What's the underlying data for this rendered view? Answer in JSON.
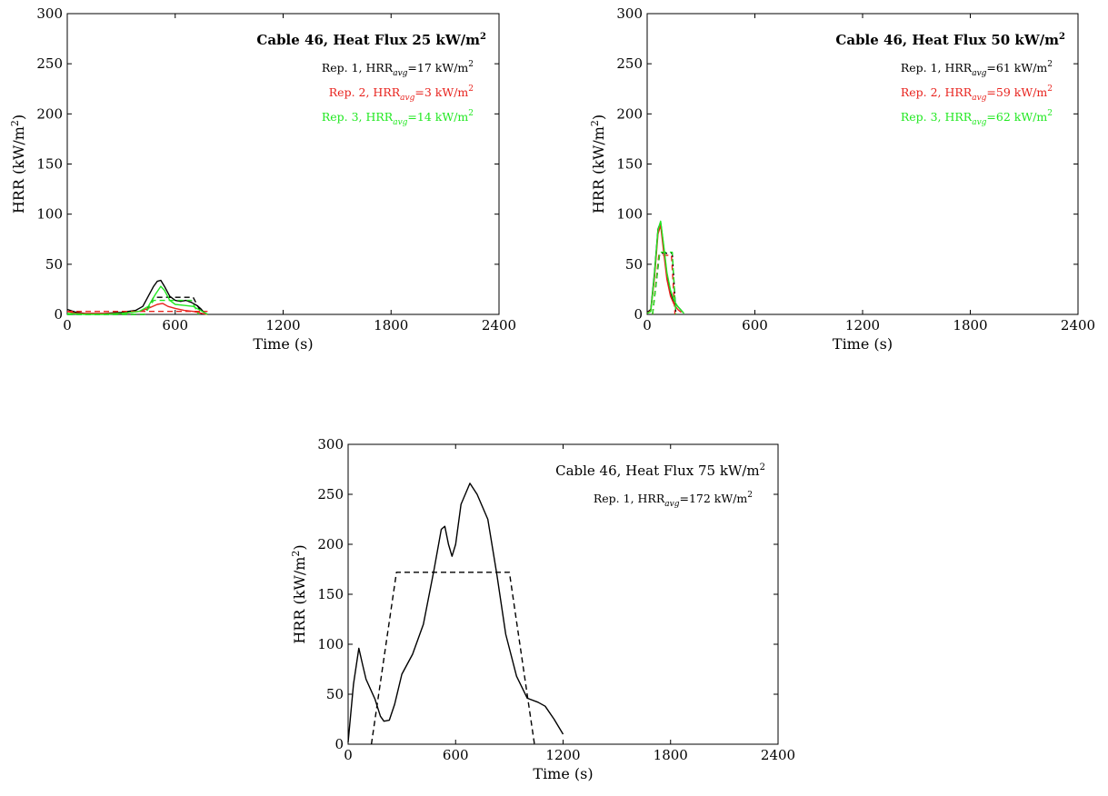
{
  "colors": {
    "rep1": "#000000",
    "rep2": "#e8231e",
    "rep3": "#22e822"
  },
  "chart_data": [
    {
      "type": "line",
      "title_parts": [
        "Cable 46, Heat Flux 25 kW/m",
        "2"
      ],
      "title_bold": true,
      "xlabel": "Time (s)",
      "ylabel_parts": [
        "HRR (kW/m",
        "2",
        ")"
      ],
      "xlim": [
        0,
        2400
      ],
      "ylim": [
        0,
        300
      ],
      "xticks": [
        "0",
        "600",
        "1200",
        "1800",
        "2400"
      ],
      "yticks": [
        "0",
        "50",
        "100",
        "150",
        "200",
        "250",
        "300"
      ],
      "legend": [
        {
          "name_parts": [
            "Rep. 1, HRR",
            "avg",
            "=17 kW/m",
            "2"
          ],
          "color": "#000000"
        },
        {
          "name_parts": [
            "Rep. 2, HRR",
            "avg",
            "=3 kW/m",
            "2"
          ],
          "color": "#e8231e"
        },
        {
          "name_parts": [
            "Rep. 3, HRR",
            "avg",
            "=14 kW/m",
            "2"
          ],
          "color": "#22e822"
        }
      ],
      "series": [
        {
          "color": "#000000",
          "style": "solid",
          "x": [
            0,
            50,
            100,
            200,
            300,
            380,
            420,
            450,
            480,
            500,
            520,
            540,
            570,
            600,
            630,
            660,
            690,
            720,
            740,
            760,
            780
          ],
          "y": [
            5,
            2,
            1,
            1,
            2,
            4,
            8,
            18,
            28,
            33,
            34,
            28,
            18,
            14,
            13,
            14,
            12,
            9,
            6,
            2,
            0
          ]
        },
        {
          "color": "#000000",
          "style": "dashed",
          "x": [
            0,
            430,
            480,
            700,
            750
          ],
          "y": [
            0,
            0,
            17,
            17,
            0
          ]
        },
        {
          "color": "#e8231e",
          "style": "solid",
          "x": [
            0,
            50,
            100,
            200,
            300,
            400,
            450,
            500,
            530,
            560,
            600,
            650,
            700,
            750,
            780
          ],
          "y": [
            3,
            1,
            1,
            1,
            1,
            3,
            6,
            10,
            11,
            8,
            6,
            4,
            3,
            1,
            0
          ]
        },
        {
          "color": "#e8231e",
          "style": "dashed",
          "x": [
            0,
            780
          ],
          "y": [
            3,
            3
          ]
        },
        {
          "color": "#22e822",
          "style": "solid",
          "x": [
            0,
            100,
            200,
            300,
            400,
            450,
            490,
            520,
            540,
            570,
            600,
            650,
            700,
            750,
            780
          ],
          "y": [
            1,
            0,
            0,
            1,
            3,
            8,
            20,
            28,
            24,
            14,
            10,
            9,
            8,
            3,
            0
          ]
        },
        {
          "color": "#22e822",
          "style": "dashed",
          "x": [
            0,
            430,
            480,
            690,
            730
          ],
          "y": [
            0,
            0,
            14,
            14,
            0
          ]
        }
      ]
    },
    {
      "type": "line",
      "title_parts": [
        "Cable 46, Heat Flux 50 kW/m",
        "2"
      ],
      "title_bold": true,
      "xlabel": "Time (s)",
      "ylabel_parts": [
        "HRR (kW/m",
        "2",
        ")"
      ],
      "xlim": [
        0,
        2400
      ],
      "ylim": [
        0,
        300
      ],
      "xticks": [
        "0",
        "600",
        "1200",
        "1800",
        "2400"
      ],
      "yticks": [
        "0",
        "50",
        "100",
        "150",
        "200",
        "250",
        "300"
      ],
      "legend": [
        {
          "name_parts": [
            "Rep. 1, HRR",
            "avg",
            "=61 kW/m",
            "2"
          ],
          "color": "#000000"
        },
        {
          "name_parts": [
            "Rep. 2, HRR",
            "avg",
            "=59 kW/m",
            "2"
          ],
          "color": "#e8231e"
        },
        {
          "name_parts": [
            "Rep. 3, HRR",
            "avg",
            "=62 kW/m",
            "2"
          ],
          "color": "#22e822"
        }
      ],
      "series": [
        {
          "color": "#000000",
          "style": "solid",
          "x": [
            0,
            20,
            40,
            60,
            75,
            90,
            110,
            130,
            150,
            170,
            190,
            200
          ],
          "y": [
            2,
            5,
            40,
            85,
            92,
            70,
            40,
            22,
            12,
            8,
            4,
            2
          ]
        },
        {
          "color": "#000000",
          "style": "dashed",
          "x": [
            30,
            70,
            140,
            160
          ],
          "y": [
            0,
            61,
            61,
            0
          ]
        },
        {
          "color": "#e8231e",
          "style": "solid",
          "x": [
            0,
            20,
            40,
            60,
            75,
            90,
            110,
            130,
            150,
            170,
            190
          ],
          "y": [
            1,
            4,
            35,
            80,
            89,
            65,
            35,
            18,
            10,
            5,
            2
          ]
        },
        {
          "color": "#e8231e",
          "style": "dashed",
          "x": [
            30,
            65,
            135,
            155
          ],
          "y": [
            0,
            59,
            59,
            0
          ]
        },
        {
          "color": "#22e822",
          "style": "solid",
          "x": [
            0,
            20,
            40,
            60,
            75,
            90,
            110,
            130,
            150,
            170,
            190,
            205
          ],
          "y": [
            1,
            3,
            38,
            84,
            93,
            72,
            42,
            24,
            14,
            8,
            4,
            1
          ]
        },
        {
          "color": "#22e822",
          "style": "dashed",
          "x": [
            30,
            70,
            140,
            160
          ],
          "y": [
            0,
            62,
            62,
            0
          ]
        }
      ]
    },
    {
      "type": "line",
      "title_parts": [
        "Cable 46, Heat Flux 75 kW/m",
        "2"
      ],
      "title_bold": false,
      "xlabel": "Time (s)",
      "ylabel_parts": [
        "HRR (kW/m",
        "2",
        ")"
      ],
      "xlim": [
        0,
        2400
      ],
      "ylim": [
        0,
        300
      ],
      "xticks": [
        "0",
        "600",
        "1200",
        "1800",
        "2400"
      ],
      "yticks": [
        "0",
        "50",
        "100",
        "150",
        "200",
        "250",
        "300"
      ],
      "legend": [
        {
          "name_parts": [
            "Rep. 1, HRR",
            "avg",
            "=172 kW/m",
            "2"
          ],
          "color": "#000000"
        }
      ],
      "series": [
        {
          "color": "#000000",
          "style": "solid",
          "x": [
            0,
            30,
            60,
            80,
            100,
            150,
            180,
            200,
            230,
            260,
            300,
            360,
            420,
            480,
            520,
            540,
            560,
            580,
            600,
            630,
            680,
            720,
            780,
            830,
            880,
            940,
            1000,
            1060,
            1100,
            1150,
            1200
          ],
          "y": [
            2,
            60,
            96,
            80,
            65,
            45,
            28,
            23,
            24,
            40,
            70,
            90,
            120,
            175,
            215,
            218,
            200,
            188,
            200,
            240,
            261,
            250,
            225,
            170,
            110,
            68,
            46,
            42,
            38,
            25,
            10
          ]
        },
        {
          "color": "#000000",
          "style": "dashed",
          "x": [
            130,
            270,
            900,
            1040
          ],
          "y": [
            0,
            172,
            172,
            0
          ]
        }
      ]
    }
  ]
}
